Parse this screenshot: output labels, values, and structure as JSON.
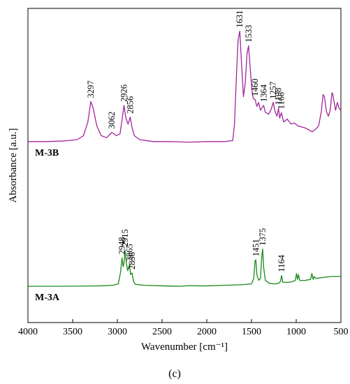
{
  "chart_data": {
    "type": "line",
    "xlabel": "Wavenumber [cm⁻¹]",
    "ylabel": "Absorbance [a.u.]",
    "xlim": [
      4000,
      500
    ],
    "x_reversed": true,
    "x_ticks": [
      4000,
      3500,
      3000,
      2500,
      2000,
      1500,
      1000,
      500
    ],
    "y_ticks_shown": false,
    "grid": false,
    "panel_label": "(c)",
    "series": [
      {
        "name": "M-3B",
        "color": "#a2259b",
        "baseline": 0.74,
        "points": [
          [
            4000,
            0
          ],
          [
            3800,
            0
          ],
          [
            3600,
            0.003
          ],
          [
            3450,
            0.01
          ],
          [
            3380,
            0.03
          ],
          [
            3330,
            0.1
          ],
          [
            3297,
            0.205
          ],
          [
            3270,
            0.17
          ],
          [
            3230,
            0.08
          ],
          [
            3180,
            0.03
          ],
          [
            3120,
            0.02
          ],
          [
            3062,
            0.047
          ],
          [
            3010,
            0.03
          ],
          [
            2970,
            0.04
          ],
          [
            2945,
            0.12
          ],
          [
            2926,
            0.185
          ],
          [
            2905,
            0.12
          ],
          [
            2880,
            0.09
          ],
          [
            2856,
            0.125
          ],
          [
            2835,
            0.07
          ],
          [
            2810,
            0.03
          ],
          [
            2750,
            0.01
          ],
          [
            2600,
            0
          ],
          [
            2400,
            0
          ],
          [
            2200,
            -0.003
          ],
          [
            2000,
            0
          ],
          [
            1800,
            0
          ],
          [
            1710,
            0.005
          ],
          [
            1690,
            0.09
          ],
          [
            1670,
            0.32
          ],
          [
            1650,
            0.52
          ],
          [
            1631,
            0.565
          ],
          [
            1615,
            0.43
          ],
          [
            1590,
            0.23
          ],
          [
            1570,
            0.3
          ],
          [
            1550,
            0.45
          ],
          [
            1533,
            0.49
          ],
          [
            1515,
            0.38
          ],
          [
            1495,
            0.26
          ],
          [
            1480,
            0.22
          ],
          [
            1460,
            0.215
          ],
          [
            1440,
            0.18
          ],
          [
            1420,
            0.2
          ],
          [
            1400,
            0.16
          ],
          [
            1380,
            0.175
          ],
          [
            1364,
            0.185
          ],
          [
            1345,
            0.15
          ],
          [
            1310,
            0.14
          ],
          [
            1280,
            0.165
          ],
          [
            1257,
            0.2
          ],
          [
            1235,
            0.15
          ],
          [
            1215,
            0.13
          ],
          [
            1198,
            0.17
          ],
          [
            1185,
            0.12
          ],
          [
            1166,
            0.148
          ],
          [
            1140,
            0.1
          ],
          [
            1100,
            0.115
          ],
          [
            1060,
            0.09
          ],
          [
            1020,
            0.095
          ],
          [
            980,
            0.08
          ],
          [
            940,
            0.075
          ],
          [
            900,
            0.07
          ],
          [
            860,
            0.06
          ],
          [
            820,
            0.05
          ],
          [
            780,
            0.065
          ],
          [
            750,
            0.08
          ],
          [
            720,
            0.15
          ],
          [
            700,
            0.24
          ],
          [
            685,
            0.23
          ],
          [
            660,
            0.15
          ],
          [
            640,
            0.13
          ],
          [
            620,
            0.16
          ],
          [
            600,
            0.25
          ],
          [
            590,
            0.24
          ],
          [
            560,
            0.16
          ],
          [
            540,
            0.2
          ],
          [
            520,
            0.17
          ],
          [
            500,
            0.16
          ]
        ]
      },
      {
        "name": "M-3A",
        "color": "#1a8a1a",
        "baseline": 0.0,
        "points": [
          [
            4000,
            0
          ],
          [
            3600,
            0
          ],
          [
            3200,
            0.002
          ],
          [
            3050,
            0.005
          ],
          [
            2990,
            0.012
          ],
          [
            2965,
            0.07
          ],
          [
            2948,
            0.145
          ],
          [
            2935,
            0.1
          ],
          [
            2925,
            0.12
          ],
          [
            2915,
            0.185
          ],
          [
            2900,
            0.12
          ],
          [
            2885,
            0.08
          ],
          [
            2865,
            0.11
          ],
          [
            2852,
            0.06
          ],
          [
            2836,
            0.068
          ],
          [
            2820,
            0.025
          ],
          [
            2800,
            0.01
          ],
          [
            2700,
            0.005
          ],
          [
            2500,
            0.002
          ],
          [
            2300,
            0
          ],
          [
            2200,
            0.003
          ],
          [
            2100,
            0.002
          ],
          [
            2000,
            0.002
          ],
          [
            1800,
            0.005
          ],
          [
            1600,
            0.008
          ],
          [
            1500,
            0.012
          ],
          [
            1475,
            0.04
          ],
          [
            1460,
            0.13
          ],
          [
            1451,
            0.135
          ],
          [
            1440,
            0.06
          ],
          [
            1420,
            0.03
          ],
          [
            1400,
            0.04
          ],
          [
            1385,
            0.15
          ],
          [
            1375,
            0.19
          ],
          [
            1365,
            0.1
          ],
          [
            1345,
            0.03
          ],
          [
            1300,
            0.015
          ],
          [
            1250,
            0.012
          ],
          [
            1200,
            0.014
          ],
          [
            1175,
            0.025
          ],
          [
            1164,
            0.055
          ],
          [
            1150,
            0.02
          ],
          [
            1100,
            0.02
          ],
          [
            1050,
            0.022
          ],
          [
            1010,
            0.03
          ],
          [
            997,
            0.065
          ],
          [
            985,
            0.035
          ],
          [
            975,
            0.06
          ],
          [
            960,
            0.03
          ],
          [
            900,
            0.03
          ],
          [
            840,
            0.035
          ],
          [
            825,
            0.065
          ],
          [
            810,
            0.035
          ],
          [
            800,
            0.05
          ],
          [
            780,
            0.04
          ],
          [
            700,
            0.045
          ],
          [
            600,
            0.05
          ],
          [
            500,
            0.05
          ]
        ]
      }
    ],
    "annotations": [
      {
        "series": "M-3B",
        "text": "3297",
        "x": 3297
      },
      {
        "series": "M-3B",
        "text": "3062",
        "x": 3062
      },
      {
        "series": "M-3B",
        "text": "2926",
        "x": 2926
      },
      {
        "series": "M-3B",
        "text": "2856",
        "x": 2856
      },
      {
        "series": "M-3B",
        "text": "1631",
        "x": 1631
      },
      {
        "series": "M-3B",
        "text": "1533",
        "x": 1533
      },
      {
        "series": "M-3B",
        "text": "1460",
        "x": 1460
      },
      {
        "series": "M-3B",
        "text": "1364",
        "x": 1364
      },
      {
        "series": "M-3B",
        "text": "1257",
        "x": 1257
      },
      {
        "series": "M-3B",
        "text": "1198",
        "x": 1198
      },
      {
        "series": "M-3B",
        "text": "1166",
        "x": 1166
      },
      {
        "series": "M-3A",
        "text": "2948",
        "x": 2948
      },
      {
        "series": "M-3A",
        "text": "2915",
        "x": 2915
      },
      {
        "series": "M-3A",
        "text": "2865",
        "x": 2865
      },
      {
        "series": "M-3A",
        "text": "2836",
        "x": 2836
      },
      {
        "series": "M-3A",
        "text": "1451",
        "x": 1451
      },
      {
        "series": "M-3A",
        "text": "1375",
        "x": 1375
      },
      {
        "series": "M-3A",
        "text": "1164",
        "x": 1164
      }
    ]
  }
}
